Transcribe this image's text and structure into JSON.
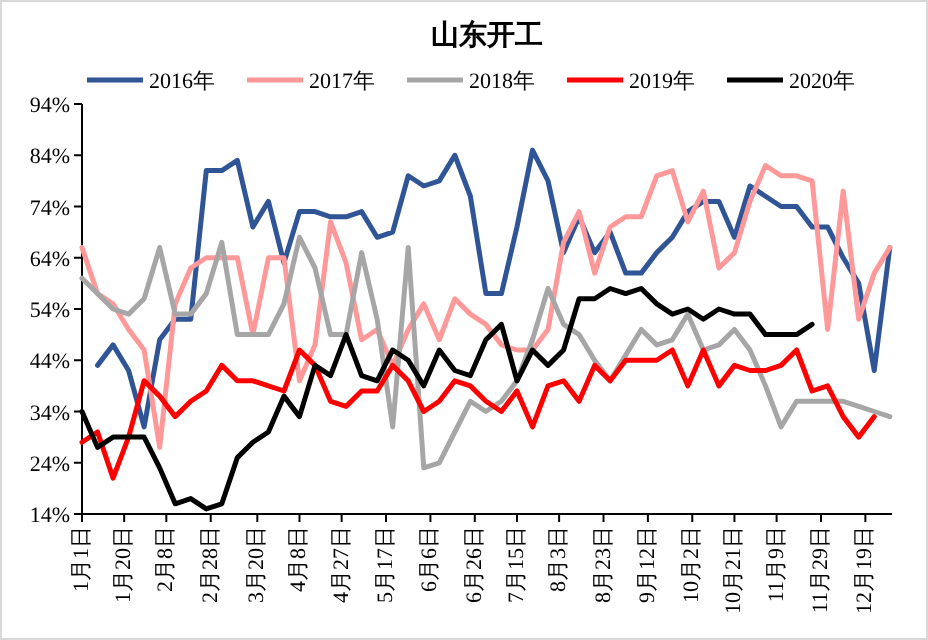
{
  "chart_data": {
    "type": "line",
    "title": "山东开工",
    "legend": "top",
    "x": [
      "--01-01",
      "--01-08",
      "--01-15",
      "--01-22",
      "--01-29",
      "--02-05",
      "--02-12",
      "--02-19",
      "--02-26",
      "--03-04",
      "--03-11",
      "--03-18",
      "--03-25",
      "--04-01",
      "--04-08",
      "--04-15",
      "--04-22",
      "--04-29",
      "--05-06",
      "--05-13",
      "--05-20",
      "--05-27",
      "--06-03",
      "--06-10",
      "--06-17",
      "--06-24",
      "--07-01",
      "--07-08",
      "--07-15",
      "--07-22",
      "--07-29",
      "--08-05",
      "--08-12",
      "--08-19",
      "--08-26",
      "--09-02",
      "--09-09",
      "--09-16",
      "--09-23",
      "--09-30",
      "--10-07",
      "--10-14",
      "--10-21",
      "--10-28",
      "--11-04",
      "--11-11",
      "--11-18",
      "--11-25",
      "--12-02",
      "--12-09",
      "--12-16",
      "--12-23",
      "--12-30"
    ],
    "xlim": [
      "--01-01",
      "--12-31"
    ],
    "xticks": [
      {
        "value": "--01-01",
        "label": "1月1日"
      },
      {
        "value": "--01-20",
        "label": "1月20日"
      },
      {
        "value": "--02-08",
        "label": "2月8日"
      },
      {
        "value": "--02-28",
        "label": "2月28日"
      },
      {
        "value": "--03-20",
        "label": "3月20日"
      },
      {
        "value": "--04-08",
        "label": "4月8日"
      },
      {
        "value": "--04-27",
        "label": "4月27日"
      },
      {
        "value": "--05-17",
        "label": "5月17日"
      },
      {
        "value": "--06-06",
        "label": "6月6日"
      },
      {
        "value": "--06-26",
        "label": "6月26日"
      },
      {
        "value": "--07-15",
        "label": "7月15日"
      },
      {
        "value": "--08-03",
        "label": "8月3日"
      },
      {
        "value": "--08-23",
        "label": "8月23日"
      },
      {
        "value": "--09-12",
        "label": "9月12日"
      },
      {
        "value": "--10-02",
        "label": "10月2日"
      },
      {
        "value": "--10-21",
        "label": "10月21日"
      },
      {
        "value": "--11-09",
        "label": "11月9日"
      },
      {
        "value": "--11-29",
        "label": "11月29日"
      },
      {
        "value": "--12-19",
        "label": "12月19日"
      }
    ],
    "ylim": [
      14,
      94
    ],
    "yticks": [
      {
        "value": 14,
        "label": "14%"
      },
      {
        "value": 24,
        "label": "24%"
      },
      {
        "value": 34,
        "label": "34%"
      },
      {
        "value": 44,
        "label": "44%"
      },
      {
        "value": 54,
        "label": "54%"
      },
      {
        "value": 64,
        "label": "64%"
      },
      {
        "value": 74,
        "label": "74%"
      },
      {
        "value": 84,
        "label": "84%"
      },
      {
        "value": 94,
        "label": "94%"
      }
    ],
    "series": [
      {
        "name": "2016年",
        "color": "#2f5597",
        "values": [
          null,
          43,
          47,
          42,
          31,
          48,
          52,
          52,
          81,
          81,
          83,
          70,
          75,
          63,
          73,
          73,
          72,
          72,
          73,
          68,
          69,
          80,
          78,
          79,
          84,
          76,
          57,
          57,
          70,
          85,
          79,
          65,
          72,
          65,
          69,
          61,
          61,
          65,
          68,
          73,
          75,
          75,
          68,
          78,
          76,
          74,
          74,
          70,
          70,
          64,
          59,
          42,
          66
        ]
      },
      {
        "name": "2017年",
        "color": "#ff9999",
        "values": [
          66,
          57,
          55,
          50,
          46,
          27,
          55,
          62,
          64,
          64,
          64,
          49,
          64,
          64,
          40,
          47,
          71,
          63,
          48,
          50,
          43,
          50,
          55,
          48,
          56,
          53,
          51,
          47,
          46,
          46,
          50,
          67,
          73,
          61,
          70,
          72,
          72,
          80,
          81,
          71,
          77,
          62,
          65,
          75,
          82,
          80,
          80,
          79,
          50,
          77,
          52,
          61,
          66
        ]
      },
      {
        "name": "2018年",
        "color": "#a6a6a6",
        "values": [
          60,
          57,
          54,
          53,
          56,
          66,
          53,
          53,
          57,
          67,
          49,
          49,
          49,
          55,
          68,
          62,
          49,
          49,
          65,
          52,
          31,
          66,
          23,
          24,
          30,
          36,
          34,
          36,
          40,
          48,
          58,
          51,
          49,
          44,
          40,
          45,
          50,
          47,
          48,
          53,
          46,
          47,
          50,
          46,
          39,
          31,
          36,
          36,
          36,
          36,
          35,
          34,
          33
        ]
      },
      {
        "name": "2019年",
        "color": "#ff0000",
        "values": [
          28,
          30,
          21,
          29,
          40,
          37,
          33,
          36,
          38,
          43,
          40,
          40,
          39,
          38,
          46,
          43,
          36,
          35,
          38,
          38,
          43,
          40,
          34,
          36,
          40,
          39,
          36,
          34,
          38,
          31,
          39,
          40,
          36,
          43,
          40,
          44,
          44,
          44,
          46,
          39,
          46,
          39,
          43,
          42,
          42,
          43,
          46,
          38,
          39,
          33,
          29,
          33,
          null
        ]
      },
      {
        "name": "2020年",
        "color": "#000000",
        "values": [
          34,
          27,
          29,
          29,
          29,
          23,
          16,
          17,
          15,
          16,
          25,
          28,
          30,
          37,
          33,
          43,
          41,
          49,
          41,
          40,
          46,
          44,
          39,
          46,
          42,
          41,
          48,
          51,
          40,
          46,
          43,
          46,
          56,
          56,
          58,
          57,
          58,
          55,
          53,
          54,
          52,
          54,
          53,
          53,
          49,
          49,
          49,
          51,
          null,
          null,
          null,
          null,
          null
        ]
      }
    ]
  }
}
